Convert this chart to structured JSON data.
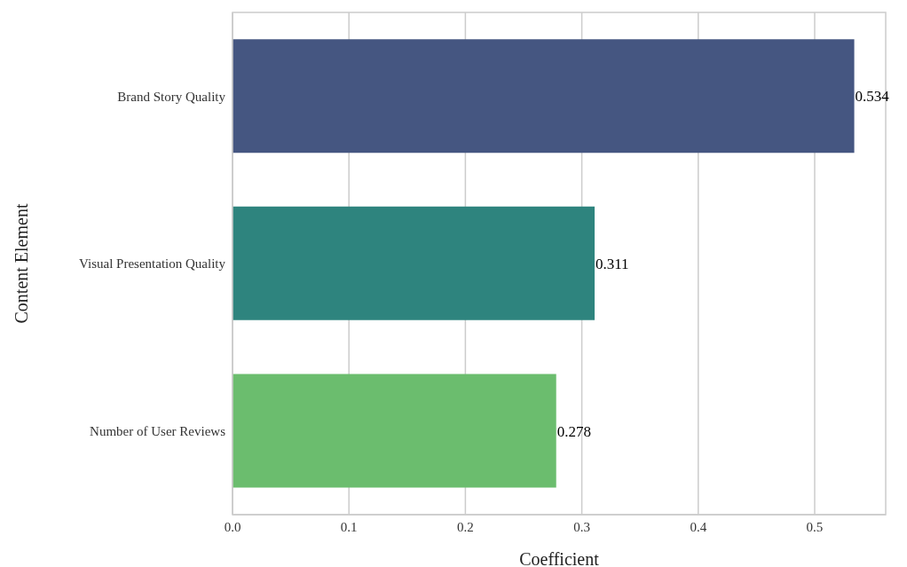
{
  "chart_data": {
    "type": "bar",
    "orientation": "horizontal",
    "xlabel": "Coefficient",
    "ylabel": "Content Element",
    "categories": [
      "Brand Story Quality",
      "Visual Presentation Quality",
      "Number of User Reviews"
    ],
    "values": [
      0.534,
      0.311,
      0.278
    ],
    "colors": [
      "#455681",
      "#2e847e",
      "#6bbd6e"
    ],
    "xlim": [
      0,
      0.561
    ],
    "xticks": [
      {
        "value": 0,
        "label": "0.0"
      },
      0.1,
      0.2,
      0.3,
      0.4,
      0.5
    ],
    "grid": "x",
    "data_labels": true
  }
}
